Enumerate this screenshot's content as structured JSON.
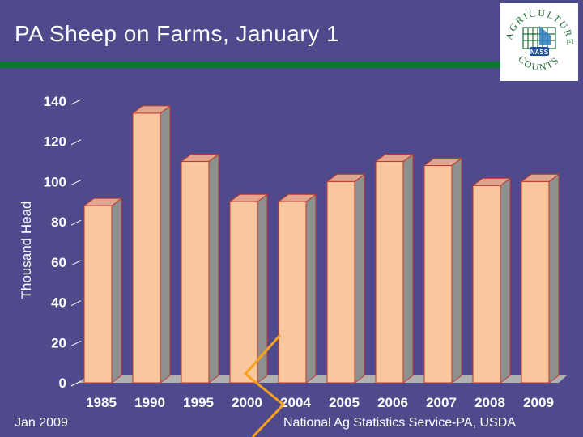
{
  "slide": {
    "title": "PA Sheep on Farms, January 1",
    "footer_left": "Jan 2009",
    "footer_right": "National Ag Statistics Service-PA, USDA"
  },
  "logo": {
    "top_text": "AGRICULTURE",
    "bottom_text": "COUNTS",
    "badge": "NASS"
  },
  "colors": {
    "background": "#4f4a8c",
    "accent_green": "#0c7a2e",
    "bar_front": "#f9c79d",
    "bar_side": "#8f8f8f",
    "bar_top": "#e0a58f",
    "bar_outline": "#c0392b",
    "floor": "#b0b0b0",
    "annotation": "#f7a11c"
  },
  "chart_data": {
    "type": "bar",
    "title": "PA Sheep on Farms, January 1",
    "xlabel": "",
    "ylabel": "Thousand Head",
    "categories": [
      "1985",
      "1990",
      "1995",
      "2000",
      "2004",
      "2005",
      "2006",
      "2007",
      "2008",
      "2009"
    ],
    "values": [
      88,
      134,
      110,
      90,
      90,
      100,
      110,
      108,
      98,
      100
    ],
    "ylim": [
      0,
      140
    ],
    "yticks": [
      0,
      20,
      40,
      60,
      80,
      100,
      120,
      140
    ],
    "grid": false,
    "legend": "none"
  }
}
